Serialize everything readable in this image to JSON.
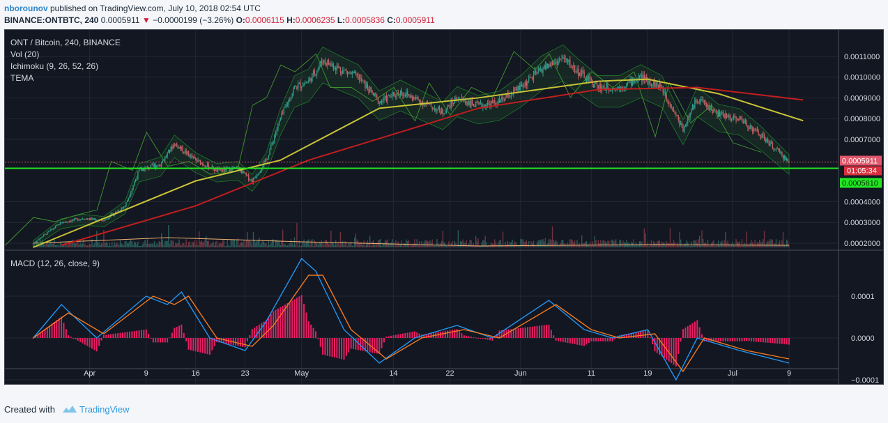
{
  "header": {
    "author": "nborounov",
    "published_text": " published on TradingView.com, July 10, 2018 02:54 UTC",
    "symbol": "BINANCE:ONTBTC, 240",
    "last": "0.0005911",
    "change_arrow": "▼",
    "change": "−0.0000199 (−3.26%)",
    "o_label": "O:",
    "o": "0.0006115",
    "h_label": "H:",
    "h": "0.0006235",
    "l_label": "L:",
    "l": "0.0005836",
    "c_label": "C:",
    "c": "0.0005911"
  },
  "legend": {
    "title": "ONT / Bitcoin, 240, BINANCE",
    "vol": "Vol (20)",
    "ichimoku": "Ichimoku (9, 26, 52, 26)",
    "tema": "TEMA",
    "macd": "MACD (12, 26, close, 9)"
  },
  "footer": {
    "created_with": "Created with",
    "brand": "TradingView"
  },
  "colors": {
    "background": "#131722",
    "grid": "#242835",
    "up": "#2ea09a",
    "down": "#e0586b",
    "ma_yellow": "#c9c337",
    "ma_red": "#c01e1e",
    "ma_green": "#1f7a2a",
    "tema": "#2e86c8",
    "hline": "#22e622",
    "macd": "#2196f3",
    "signal": "#f27a1f",
    "hist": "#e91e63"
  },
  "chart_data": [
    {
      "type": "candlestick",
      "title": "ONT / Bitcoin, 240, BINANCE",
      "x_tick_labels": [
        "Apr",
        "9",
        "16",
        "23",
        "May",
        "14",
        "22",
        "Jun",
        "11",
        "19",
        "Jul",
        "9"
      ],
      "y_tick_labels": [
        "0.0011000",
        "0.0010000",
        "0.0009000",
        "0.0008000",
        "0.0007000",
        "0.0004000",
        "0.0003000",
        "0.0002000"
      ],
      "ylim": [
        0.00018,
        0.00118
      ],
      "price_label": "0.0005911",
      "countdown_label": "01:05:34",
      "hline_label": "0.0005610",
      "hline_value": 0.000561,
      "close_path": [
        [
          "Mar 24",
          0.0002
        ],
        [
          "Mar 28",
          0.0003
        ],
        [
          "Mar 31",
          0.00032
        ],
        [
          "Apr 3",
          0.00031
        ],
        [
          "Apr 6",
          0.00038
        ],
        [
          "Apr 8",
          0.00055
        ],
        [
          "Apr 11",
          0.00058
        ],
        [
          "Apr 13",
          0.00068
        ],
        [
          "Apr 16",
          0.0006
        ],
        [
          "Apr 19",
          0.00055
        ],
        [
          "Apr 22",
          0.00056
        ],
        [
          "Apr 24",
          0.0005
        ],
        [
          "Apr 26",
          0.0006
        ],
        [
          "Apr 28",
          0.0008
        ],
        [
          "Apr 30",
          0.00095
        ],
        [
          "May 2",
          0.00098
        ],
        [
          "May 4",
          0.00108
        ],
        [
          "May 7",
          0.00103
        ],
        [
          "May 9",
          0.001
        ],
        [
          "May 12",
          0.00088
        ],
        [
          "May 15",
          0.00093
        ],
        [
          "May 18",
          0.00088
        ],
        [
          "May 21",
          0.00083
        ],
        [
          "May 23",
          0.0009
        ],
        [
          "May 26",
          0.00086
        ],
        [
          "May 29",
          0.00088
        ],
        [
          "Jun 1",
          0.00095
        ],
        [
          "Jun 4",
          0.00104
        ],
        [
          "Jun 7",
          0.00109
        ],
        [
          "Jun 9",
          0.00103
        ],
        [
          "Jun 12",
          0.00095
        ],
        [
          "Jun 15",
          0.00095
        ],
        [
          "Jun 18",
          0.001
        ],
        [
          "Jun 21",
          0.00095
        ],
        [
          "Jun 24",
          0.00075
        ],
        [
          "Jun 26",
          0.0009
        ],
        [
          "Jun 29",
          0.00082
        ],
        [
          "Jul 2",
          0.0008
        ],
        [
          "Jul 5",
          0.00072
        ],
        [
          "Jul 9",
          0.000591
        ]
      ],
      "series": [
        {
          "name": "",
          "color": "#c9c337",
          "values": [
            [
              "Mar 24",
              0.00018
            ],
            [
              "Apr 16",
              0.0005
            ],
            [
              "Apr 28",
              0.0006
            ],
            [
              "May 12",
              0.00085
            ],
            [
              "May 26",
              0.0009
            ],
            [
              "Jun 12",
              0.00098
            ],
            [
              "Jun 19",
              0.00099
            ],
            [
              "Jun 29",
              0.00092
            ],
            [
              "Jul 11",
              0.00079
            ]
          ]
        },
        {
          "name": "",
          "color": "#c01e1e",
          "values": [
            [
              "Mar 28",
              0.00019
            ],
            [
              "Apr 16",
              0.00038
            ],
            [
              "May 2",
              0.0006
            ],
            [
              "May 26",
              0.00085
            ],
            [
              "Jun 12",
              0.00094
            ],
            [
              "Jun 26",
              0.00095
            ],
            [
              "Jul 11",
              0.00089
            ]
          ]
        }
      ]
    },
    {
      "type": "line",
      "title": "MACD (12, 26, close, 9)",
      "y_tick_labels": [
        "0.0001",
        "0.0000",
        "−0.0001"
      ],
      "ylim": [
        -0.00011,
        0.0002
      ],
      "series": [
        {
          "name": "",
          "color": "#2196f3",
          "values": [
            [
              "Mar 24",
              0.0
            ],
            [
              "Mar 28",
              8e-05
            ],
            [
              "Apr 2",
              0.0
            ],
            [
              "Apr 9",
              0.0001
            ],
            [
              "Apr 12",
              8e-05
            ],
            [
              "Apr 14",
              0.00011
            ],
            [
              "Apr 18",
              0.0
            ],
            [
              "Apr 23",
              -3e-05
            ],
            [
              "Apr 26",
              4e-05
            ],
            [
              "May 1",
              0.00019
            ],
            [
              "May 3",
              0.00016
            ],
            [
              "May 7",
              2e-05
            ],
            [
              "May 12",
              -6e-05
            ],
            [
              "May 17",
              0.0
            ],
            [
              "May 23",
              3e-05
            ],
            [
              "May 28",
              0.0
            ],
            [
              "Jun 5",
              9e-05
            ],
            [
              "Jun 10",
              2e-05
            ],
            [
              "Jun 14",
              0.0
            ],
            [
              "Jun 19",
              2e-05
            ],
            [
              "Jun 23",
              -0.0001
            ],
            [
              "Jun 26",
              0.0
            ],
            [
              "Jul 2",
              -3e-05
            ],
            [
              "Jul 9",
              -6e-05
            ]
          ]
        },
        {
          "name": "",
          "color": "#f27a1f",
          "values": [
            [
              "Mar 24",
              0.0
            ],
            [
              "Mar 29",
              6e-05
            ],
            [
              "Apr 3",
              1e-05
            ],
            [
              "Apr 10",
              0.0001
            ],
            [
              "Apr 13",
              8e-05
            ],
            [
              "Apr 15",
              0.0001
            ],
            [
              "Apr 19",
              0.0
            ],
            [
              "Apr 24",
              -2e-05
            ],
            [
              "Apr 27",
              3e-05
            ],
            [
              "May 2",
              0.00015
            ],
            [
              "May 4",
              0.00015
            ],
            [
              "May 8",
              2e-05
            ],
            [
              "May 13",
              -5e-05
            ],
            [
              "May 18",
              0.0
            ],
            [
              "May 24",
              2e-05
            ],
            [
              "May 29",
              0.0
            ],
            [
              "Jun 6",
              8e-05
            ],
            [
              "Jun 11",
              2e-05
            ],
            [
              "Jun 15",
              0.0
            ],
            [
              "Jun 20",
              1e-05
            ],
            [
              "Jun 24",
              -8e-05
            ],
            [
              "Jun 27",
              0.0
            ],
            [
              "Jul 3",
              -3e-05
            ],
            [
              "Jul 9",
              -5e-05
            ]
          ]
        }
      ]
    }
  ]
}
